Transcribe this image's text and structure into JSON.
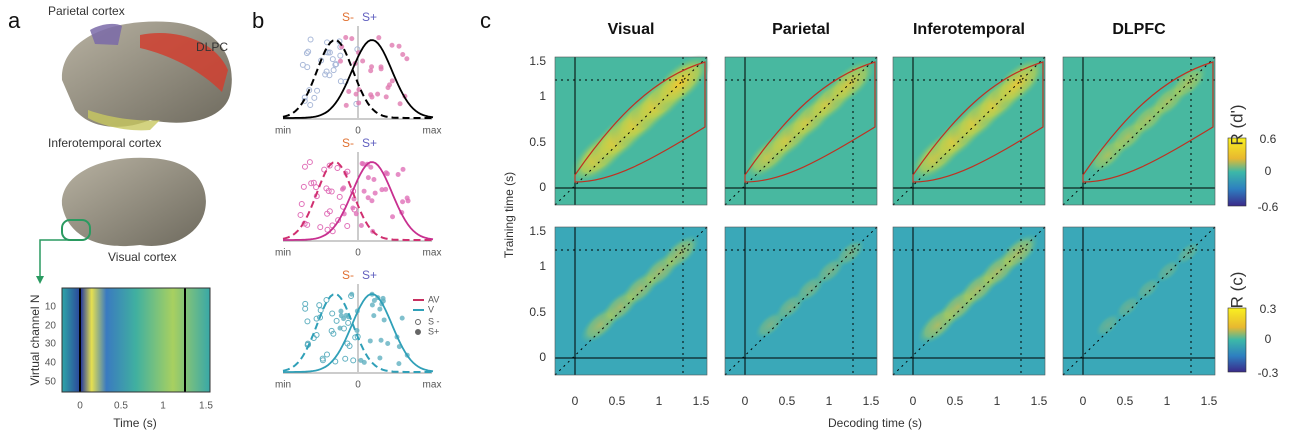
{
  "panels": {
    "a": {
      "label": "a",
      "regions": [
        "Parietal cortex",
        "DLPC",
        "Inferotemporal cortex",
        "Visual cortex"
      ],
      "raster": {
        "ylabel": "Virtual channel N",
        "xlabel": "Time (s)",
        "yticks": [
          "10",
          "20",
          "30",
          "40",
          "50"
        ],
        "xticks": [
          "0",
          "0.5",
          "1",
          "1.5"
        ]
      }
    },
    "b": {
      "label": "b",
      "plots": [
        {
          "s_minus": "S-",
          "s_plus": "S+",
          "xticks": [
            "min",
            "0",
            "max"
          ]
        },
        {
          "s_minus": "S-",
          "s_plus": "S+",
          "xticks": [
            "min",
            "0",
            "max"
          ]
        },
        {
          "s_minus": "S-",
          "s_plus": "S+",
          "xticks": [
            "min",
            "0",
            "max"
          ]
        }
      ],
      "legend": [
        "AV",
        "V",
        "S -",
        "S+"
      ]
    },
    "c": {
      "label": "c",
      "columns": [
        "Visual",
        "Parietal",
        "Inferotemporal",
        "DLPFC"
      ],
      "ylabel": "Training time (s)",
      "xlabel": "Decoding time (s)",
      "yticks": [
        "0",
        "0.5",
        "1",
        "1.5"
      ],
      "xticks": [
        "0",
        "0.5",
        "1",
        "1.5"
      ],
      "colorbars": [
        {
          "label": "R (d')",
          "ticks": [
            "0.6",
            "0",
            "-0.6"
          ]
        },
        {
          "label": "R (c)",
          "ticks": [
            "0.3",
            "0",
            "-0.3"
          ]
        }
      ]
    }
  }
}
